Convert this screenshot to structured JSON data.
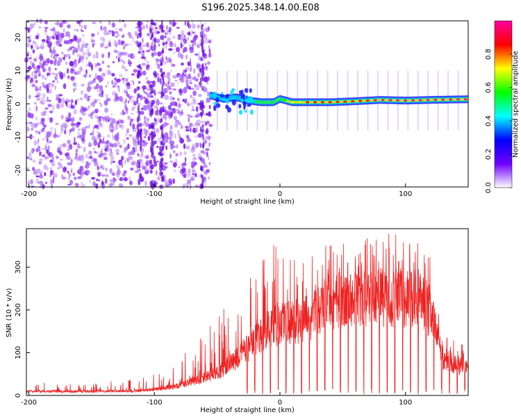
{
  "title": "S196.2025.348.14.00.E08",
  "chart_data": [
    {
      "type": "heatmap",
      "name": "spectrogram",
      "xlabel": "Height of straight line (km)",
      "ylabel": "Frequency (Hz)",
      "xlim": [
        -202,
        150
      ],
      "ylim": [
        -25,
        25
      ],
      "xticks": [
        -200,
        -100,
        0,
        100
      ],
      "yticks": [
        -20,
        -10,
        0,
        10,
        20
      ],
      "colorbar": {
        "label": "Normalized spectral amplitude",
        "range": [
          0,
          1
        ],
        "ticks": [
          0.0,
          0.2,
          0.4,
          0.6,
          0.8
        ],
        "colors": [
          "#ffffff",
          "#6f00ff",
          "#0000ff",
          "#00ffff",
          "#00ff00",
          "#ffff00",
          "#ff0000",
          "#ff00a0"
        ]
      },
      "noise_region_x": [
        -202,
        -55
      ],
      "signal_track": {
        "x": [
          -55,
          -45,
          -35,
          -25,
          -15,
          -5,
          0,
          10,
          20,
          40,
          60,
          80,
          100,
          120,
          150
        ],
        "freq_hz": [
          2.5,
          1.5,
          2.0,
          1.0,
          0.5,
          0.5,
          1.5,
          0.5,
          0.5,
          0.5,
          0.8,
          1.2,
          1.0,
          1.2,
          1.4
        ],
        "peak_amplitude": [
          0.3,
          0.3,
          0.35,
          0.4,
          0.5,
          0.55,
          0.6,
          0.7,
          0.8,
          0.9,
          0.9,
          0.95,
          0.95,
          0.95,
          0.95
        ]
      }
    },
    {
      "type": "line",
      "name": "snr",
      "xlabel": "Height of straight line (km)",
      "ylabel": "SNR (10 * v/v)",
      "xlim": [
        -202,
        150
      ],
      "ylim": [
        0,
        390
      ],
      "xticks": [
        -200,
        -100,
        0,
        100
      ],
      "yticks": [
        0,
        100,
        200,
        300
      ],
      "color": "#ee2222",
      "envelope": {
        "x": [
          -202,
          -150,
          -110,
          -95,
          -80,
          -65,
          -50,
          -35,
          -20,
          -5,
          5,
          20,
          35,
          50,
          70,
          90,
          110,
          120,
          130,
          140,
          150
        ],
        "baseline": [
          12,
          12,
          14,
          20,
          30,
          45,
          65,
          105,
          160,
          205,
          215,
          220,
          260,
          280,
          285,
          285,
          280,
          240,
          110,
          90,
          85
        ],
        "spikes_max": [
          30,
          30,
          40,
          60,
          90,
          130,
          190,
          250,
          300,
          360,
          330,
          320,
          360,
          360,
          370,
          380,
          360,
          330,
          160,
          140,
          130
        ]
      }
    }
  ]
}
